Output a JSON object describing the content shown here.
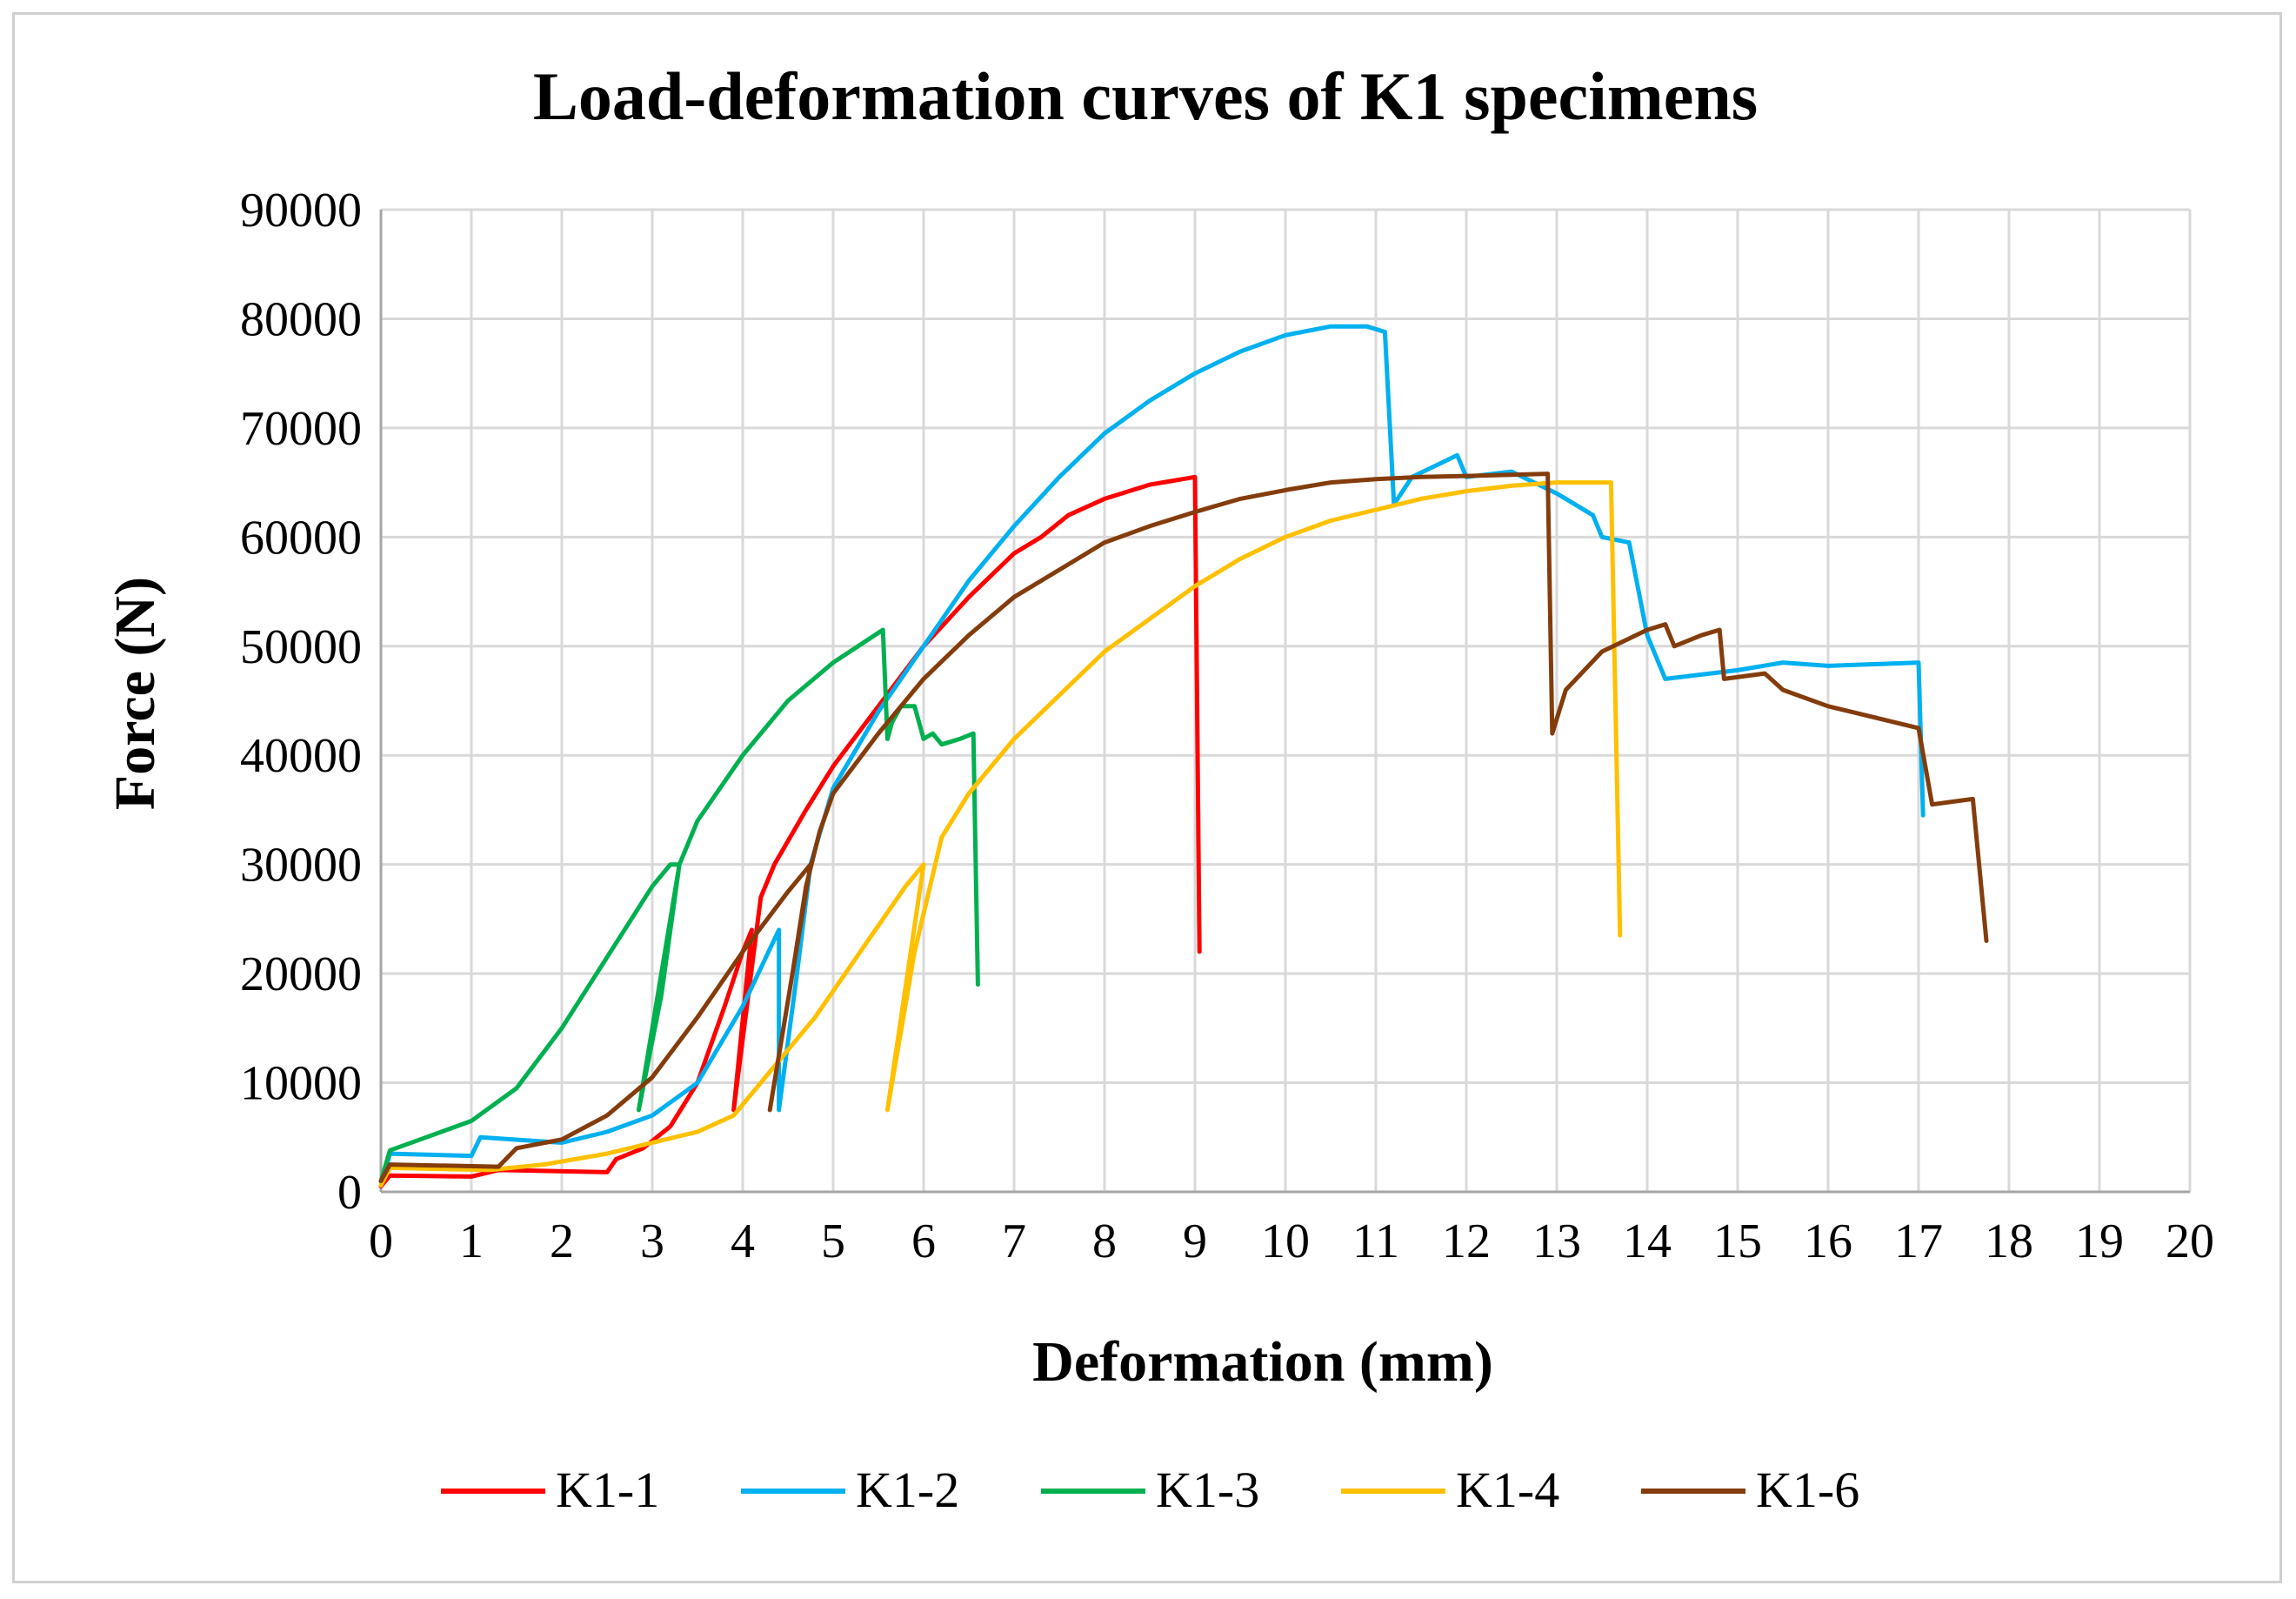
{
  "chart_data": {
    "type": "line",
    "title": "Load-deformation  curves of K1 specimens",
    "xlabel": "Deformation (mm)",
    "ylabel": "Force (N)",
    "xlim": [
      0,
      20
    ],
    "ylim": [
      0,
      90000
    ],
    "x_ticks": [
      0,
      1,
      2,
      3,
      4,
      5,
      6,
      7,
      8,
      9,
      10,
      11,
      12,
      13,
      14,
      15,
      16,
      17,
      18,
      19,
      20
    ],
    "y_ticks": [
      0,
      10000,
      20000,
      30000,
      40000,
      50000,
      60000,
      70000,
      80000,
      90000
    ],
    "x_tick_labels": [
      "0",
      "1",
      "2",
      "3",
      "4",
      "5",
      "6",
      "7",
      "8",
      "9",
      "10",
      "11",
      "12",
      "13",
      "14",
      "15",
      "16",
      "17",
      "18",
      "19",
      "20"
    ],
    "y_tick_labels": [
      "0",
      "10000",
      "20000",
      "30000",
      "40000",
      "50000",
      "60000",
      "70000",
      "80000",
      "90000"
    ],
    "grid": true,
    "legend_position": "bottom",
    "series": [
      {
        "name": "K1-1",
        "color": "#ff0000",
        "points": [
          [
            0,
            500
          ],
          [
            0.1,
            1500
          ],
          [
            1,
            1400
          ],
          [
            1.3,
            2000
          ],
          [
            2.5,
            1800
          ],
          [
            2.6,
            3000
          ],
          [
            2.9,
            4000
          ],
          [
            3.2,
            6000
          ],
          [
            3.5,
            10000
          ],
          [
            3.8,
            17000
          ],
          [
            4.0,
            22000
          ],
          [
            4.1,
            24000
          ],
          [
            3.9,
            7500
          ],
          [
            4.2,
            27000
          ],
          [
            4.35,
            30000
          ],
          [
            4.7,
            35000
          ],
          [
            5.0,
            39000
          ],
          [
            5.5,
            44500
          ],
          [
            6.0,
            50000
          ],
          [
            6.5,
            54500
          ],
          [
            7.0,
            58500
          ],
          [
            7.3,
            60000
          ],
          [
            7.6,
            62000
          ],
          [
            8.0,
            63500
          ],
          [
            8.5,
            64800
          ],
          [
            9.0,
            65500
          ],
          [
            9.05,
            22000
          ]
        ]
      },
      {
        "name": "K1-2",
        "color": "#00b0f0",
        "points": [
          [
            0,
            600
          ],
          [
            0.1,
            3500
          ],
          [
            1,
            3300
          ],
          [
            1.1,
            5000
          ],
          [
            2,
            4500
          ],
          [
            2.5,
            5500
          ],
          [
            3,
            7000
          ],
          [
            3.5,
            10000
          ],
          [
            4.0,
            17000
          ],
          [
            4.4,
            24000
          ],
          [
            4.4,
            7500
          ],
          [
            4.6,
            20000
          ],
          [
            4.75,
            30000
          ],
          [
            5.0,
            37000
          ],
          [
            5.5,
            44000
          ],
          [
            6.0,
            50000
          ],
          [
            6.5,
            56000
          ],
          [
            7.0,
            61000
          ],
          [
            7.5,
            65500
          ],
          [
            8.0,
            69500
          ],
          [
            8.5,
            72500
          ],
          [
            9.0,
            75000
          ],
          [
            9.5,
            77000
          ],
          [
            10.0,
            78500
          ],
          [
            10.5,
            79300
          ],
          [
            10.9,
            79300
          ],
          [
            11.1,
            78800
          ],
          [
            11.2,
            63000
          ],
          [
            11.4,
            65500
          ],
          [
            11.9,
            67500
          ],
          [
            12.0,
            65500
          ],
          [
            12.5,
            66000
          ],
          [
            13.0,
            64000
          ],
          [
            13.4,
            62000
          ],
          [
            13.5,
            60000
          ],
          [
            13.8,
            59500
          ],
          [
            14.0,
            51000
          ],
          [
            14.2,
            47000
          ],
          [
            15.0,
            47800
          ],
          [
            15.5,
            48500
          ],
          [
            16.0,
            48200
          ],
          [
            17.0,
            48500
          ],
          [
            17.05,
            34500
          ]
        ]
      },
      {
        "name": "K1-3",
        "color": "#00b050",
        "points": [
          [
            0,
            1000
          ],
          [
            0.1,
            3800
          ],
          [
            0.5,
            5000
          ],
          [
            1,
            6500
          ],
          [
            1.5,
            9500
          ],
          [
            2,
            15000
          ],
          [
            2.5,
            21500
          ],
          [
            3.0,
            28000
          ],
          [
            3.2,
            30000
          ],
          [
            3.3,
            30000
          ],
          [
            2.85,
            7500
          ],
          [
            3.1,
            18000
          ],
          [
            3.3,
            30000
          ],
          [
            3.5,
            34000
          ],
          [
            4.0,
            40000
          ],
          [
            4.5,
            45000
          ],
          [
            5.0,
            48500
          ],
          [
            5.55,
            51500
          ],
          [
            5.6,
            41500
          ],
          [
            5.65,
            43000
          ],
          [
            5.75,
            44500
          ],
          [
            5.9,
            44500
          ],
          [
            6.0,
            41500
          ],
          [
            6.1,
            42000
          ],
          [
            6.2,
            41000
          ],
          [
            6.4,
            41500
          ],
          [
            6.55,
            42000
          ],
          [
            6.6,
            19000
          ]
        ]
      },
      {
        "name": "K1-4",
        "color": "#ffc000",
        "points": [
          [
            0,
            600
          ],
          [
            0.1,
            2200
          ],
          [
            1.2,
            2000
          ],
          [
            1.8,
            2500
          ],
          [
            2.5,
            3500
          ],
          [
            3.0,
            4500
          ],
          [
            3.5,
            5500
          ],
          [
            3.9,
            7000
          ],
          [
            4.3,
            11000
          ],
          [
            4.8,
            16000
          ],
          [
            5.3,
            22000
          ],
          [
            5.8,
            28000
          ],
          [
            6.0,
            30000
          ],
          [
            5.6,
            7500
          ],
          [
            5.9,
            22000
          ],
          [
            6.2,
            32500
          ],
          [
            6.5,
            36500
          ],
          [
            7.0,
            41500
          ],
          [
            7.5,
            45500
          ],
          [
            8.0,
            49500
          ],
          [
            8.5,
            52500
          ],
          [
            9.0,
            55500
          ],
          [
            9.5,
            58000
          ],
          [
            10,
            60000
          ],
          [
            10.5,
            61500
          ],
          [
            11,
            62500
          ],
          [
            11.5,
            63500
          ],
          [
            12,
            64200
          ],
          [
            12.5,
            64700
          ],
          [
            13.0,
            65000
          ],
          [
            13.6,
            65000
          ],
          [
            13.7,
            23500
          ]
        ]
      },
      {
        "name": "K1-6",
        "color": "#843c0c",
        "points": [
          [
            0,
            1000
          ],
          [
            0.1,
            2500
          ],
          [
            1.3,
            2300
          ],
          [
            1.5,
            4000
          ],
          [
            2,
            4800
          ],
          [
            2.5,
            7000
          ],
          [
            3,
            10500
          ],
          [
            3.5,
            16000
          ],
          [
            4,
            22000
          ],
          [
            4.5,
            27500
          ],
          [
            4.75,
            30000
          ],
          [
            4.3,
            7500
          ],
          [
            4.55,
            20000
          ],
          [
            4.7,
            28000
          ],
          [
            4.85,
            33000
          ],
          [
            5.0,
            36500
          ],
          [
            5.5,
            42000
          ],
          [
            6.0,
            47000
          ],
          [
            6.5,
            51000
          ],
          [
            7.0,
            54500
          ],
          [
            7.5,
            57000
          ],
          [
            8.0,
            59500
          ],
          [
            8.5,
            61000
          ],
          [
            9.0,
            62300
          ],
          [
            9.5,
            63500
          ],
          [
            10.0,
            64300
          ],
          [
            10.5,
            65000
          ],
          [
            11.0,
            65300
          ],
          [
            11.5,
            65500
          ],
          [
            12.0,
            65600
          ],
          [
            12.5,
            65700
          ],
          [
            12.9,
            65800
          ],
          [
            12.95,
            42000
          ],
          [
            13.1,
            46000
          ],
          [
            13.5,
            49500
          ],
          [
            14.0,
            51500
          ],
          [
            14.2,
            52000
          ],
          [
            14.3,
            50000
          ],
          [
            14.6,
            51000
          ],
          [
            14.8,
            51500
          ],
          [
            14.85,
            47000
          ],
          [
            15.3,
            47500
          ],
          [
            15.5,
            46000
          ],
          [
            16.0,
            44500
          ],
          [
            16.5,
            43500
          ],
          [
            17.0,
            42500
          ],
          [
            17.15,
            35500
          ],
          [
            17.6,
            36000
          ],
          [
            17.75,
            23000
          ]
        ]
      }
    ]
  }
}
